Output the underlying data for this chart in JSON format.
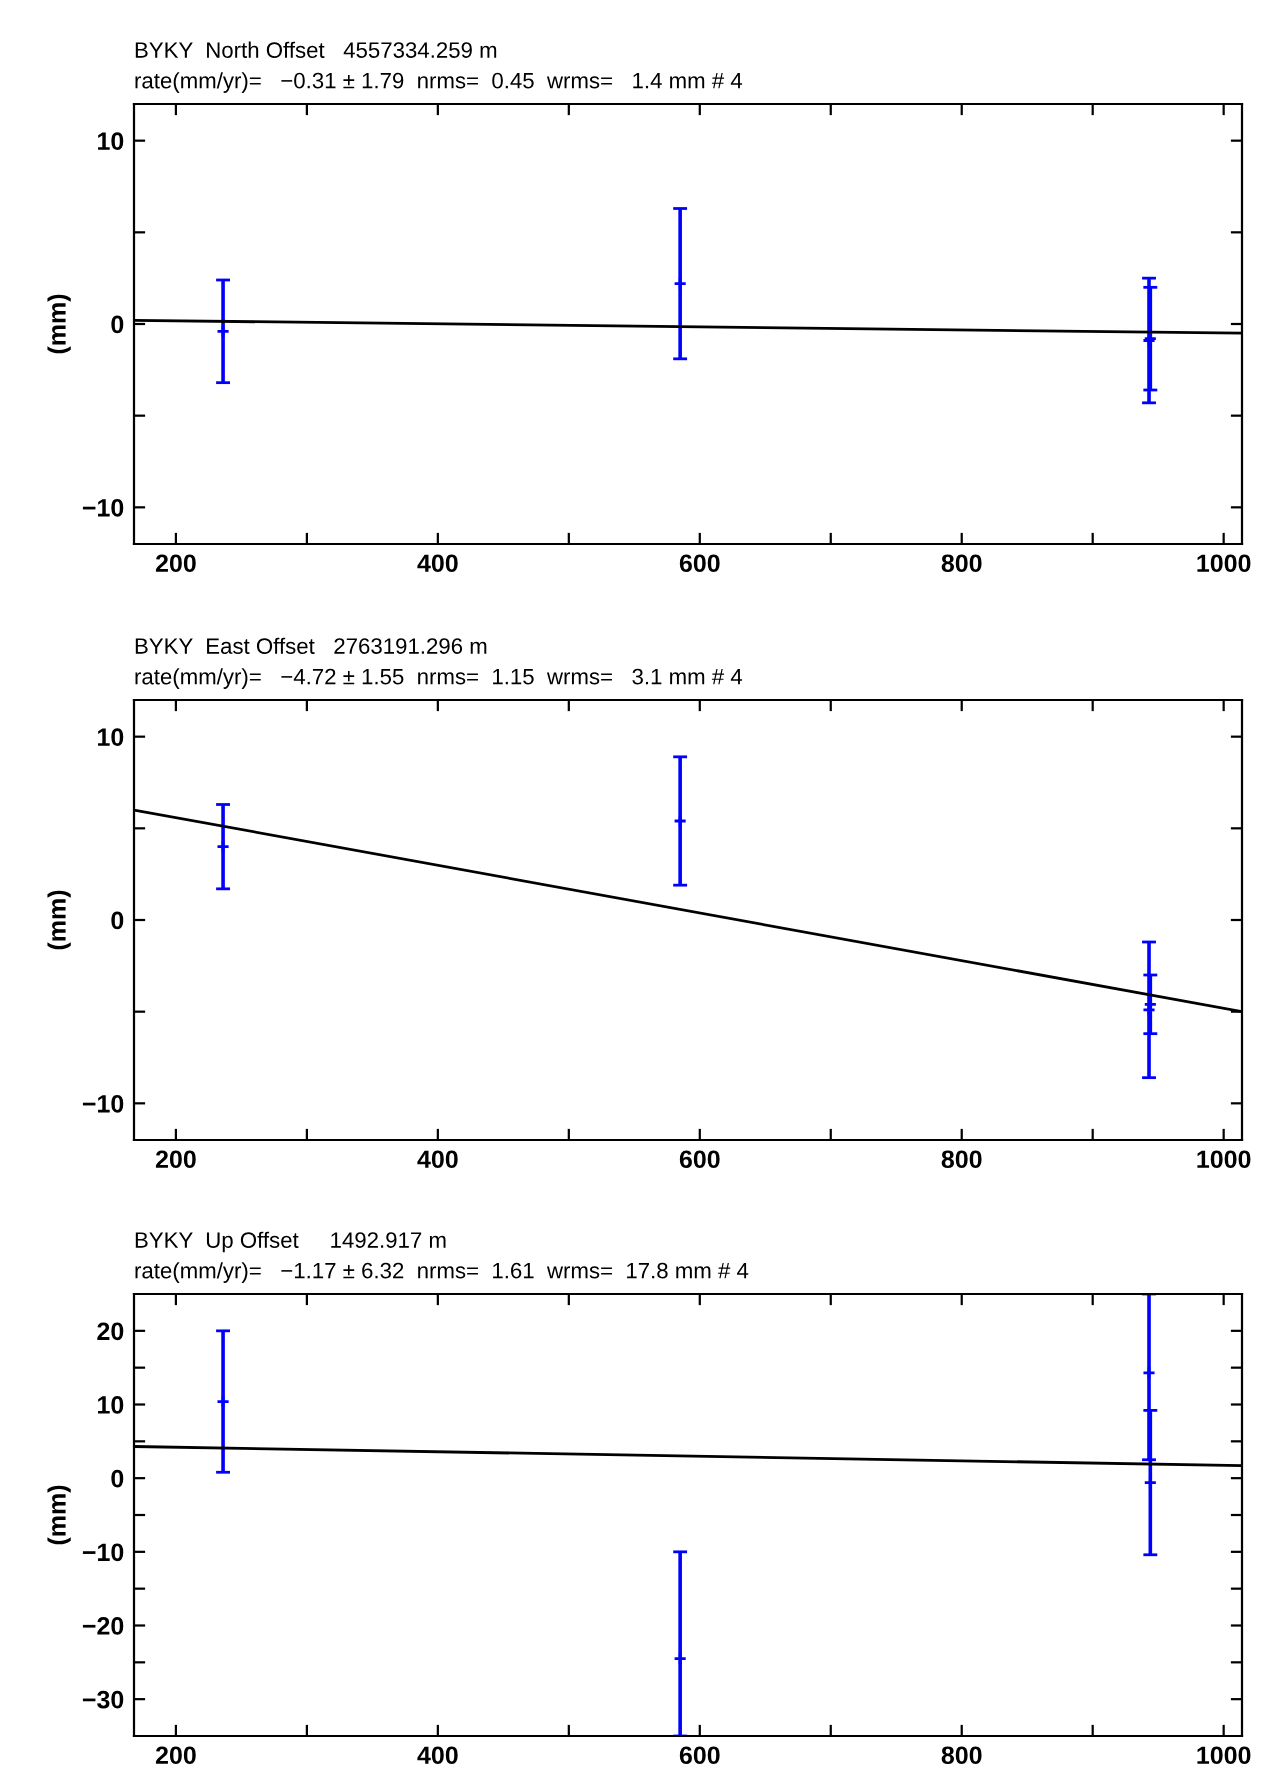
{
  "chart_data": [
    {
      "type": "scatter",
      "title": "BYKY  North Offset   4557334.259 m",
      "subtitle": "rate(mm/yr)=   −0.31 ± 1.79  nrms=  0.45  wrms=   1.4 mm # 4",
      "ylabel": "(mm)",
      "xlim": [
        168,
        1014
      ],
      "xticks": [
        200,
        {
          "value": 300,
          "label": null
        },
        400,
        {
          "value": 500,
          "label": null
        },
        600,
        {
          "value": 700,
          "label": null
        },
        800,
        {
          "value": 900,
          "label": null
        },
        1000
      ],
      "ylim": [
        -12,
        12
      ],
      "yticks": [
        {
          "value": -10,
          "label": "−10"
        },
        {
          "value": -5,
          "label": null
        },
        0,
        {
          "value": 5,
          "label": null
        },
        10
      ],
      "grid": false,
      "marker": "cross",
      "series": [
        {
          "color": "#0000ff",
          "x": [
            236,
            585,
            943,
            944
          ],
          "values": [
            -0.4,
            2.2,
            -0.9,
            -0.8
          ],
          "errors": [
            2.8,
            4.1,
            3.4,
            2.8
          ]
        },
        {
          "type": "line",
          "color": "#000000",
          "x": [
            168,
            1014
          ],
          "values": [
            0.2,
            -0.5
          ],
          "marker": "none",
          "line_style": "solid"
        }
      ]
    },
    {
      "type": "scatter",
      "title": "BYKY  East Offset   2763191.296 m",
      "subtitle": "rate(mm/yr)=   −4.72 ± 1.55  nrms=  1.15  wrms=   3.1 mm # 4",
      "ylabel": "(mm)",
      "xlim": [
        168,
        1014
      ],
      "xticks": [
        200,
        {
          "value": 300,
          "label": null
        },
        400,
        {
          "value": 500,
          "label": null
        },
        600,
        {
          "value": 700,
          "label": null
        },
        800,
        {
          "value": 900,
          "label": null
        },
        1000
      ],
      "ylim": [
        -12,
        12
      ],
      "yticks": [
        {
          "value": -10,
          "label": "−10"
        },
        {
          "value": -5,
          "label": null
        },
        0,
        {
          "value": 5,
          "label": null
        },
        10
      ],
      "grid": false,
      "marker": "cross",
      "series": [
        {
          "color": "#0000ff",
          "x": [
            236,
            585,
            943,
            944
          ],
          "values": [
            4.0,
            5.4,
            -4.9,
            -4.6
          ],
          "errors": [
            2.3,
            3.5,
            3.7,
            1.6
          ]
        },
        {
          "type": "line",
          "color": "#000000",
          "x": [
            168,
            1014
          ],
          "values": [
            6.0,
            -5.0
          ],
          "marker": "none",
          "line_style": "solid"
        }
      ]
    },
    {
      "type": "scatter",
      "title": "BYKY  Up Offset     1492.917 m",
      "subtitle": "rate(mm/yr)=   −1.17 ± 6.32  nrms=  1.61  wrms=  17.8 mm # 4",
      "ylabel": "(mm)",
      "xlim": [
        168,
        1014
      ],
      "xticks": [
        200,
        {
          "value": 300,
          "label": null
        },
        400,
        {
          "value": 500,
          "label": null
        },
        600,
        {
          "value": 700,
          "label": null
        },
        800,
        {
          "value": 900,
          "label": null
        },
        1000
      ],
      "ylim": [
        -35,
        25
      ],
      "yticks": [
        {
          "value": -30,
          "label": "−30"
        },
        {
          "value": -25,
          "label": null
        },
        {
          "value": -20,
          "label": "−20"
        },
        {
          "value": -15,
          "label": null
        },
        {
          "value": -10,
          "label": "−10"
        },
        {
          "value": -5,
          "label": null
        },
        0,
        {
          "value": 5,
          "label": null
        },
        10,
        {
          "value": 15,
          "label": null
        },
        20
      ],
      "grid": false,
      "marker": "cross",
      "series": [
        {
          "color": "#0000ff",
          "x": [
            236,
            585,
            943,
            944
          ],
          "values": [
            10.4,
            -24.5,
            14.3,
            -0.6
          ],
          "errors": [
            9.6,
            [
              -35,
              -10
            ],
            [
              2.5,
              25
            ],
            9.8
          ]
        },
        {
          "type": "line",
          "color": "#000000",
          "x": [
            168,
            1014
          ],
          "values": [
            4.3,
            1.7
          ],
          "marker": "none",
          "line_style": "solid"
        }
      ]
    }
  ]
}
